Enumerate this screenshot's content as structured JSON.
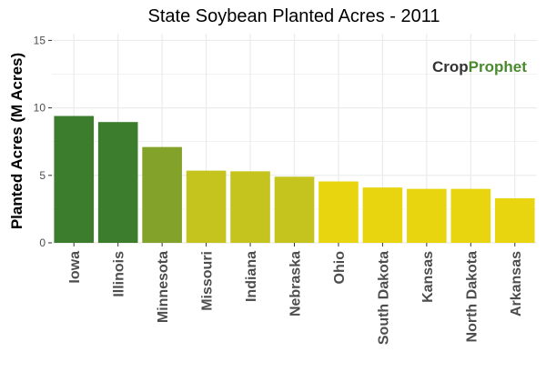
{
  "chart_data": {
    "type": "bar",
    "title": "State Soybean Planted Acres - 2011",
    "xlabel": "",
    "ylabel": "Planted Acres (M Acres)",
    "ylim": [
      0,
      15.5
    ],
    "yticks": [
      0,
      5,
      10,
      15
    ],
    "grid": true,
    "categories": [
      "Iowa",
      "Illinois",
      "Minnesota",
      "Missouri",
      "Indiana",
      "Nebraska",
      "Ohio",
      "South Dakota",
      "Kansas",
      "North Dakota",
      "Arkansas"
    ],
    "values": [
      9.4,
      8.95,
      7.1,
      5.35,
      5.3,
      4.9,
      4.55,
      4.1,
      4.0,
      4.0,
      3.3
    ],
    "colors": [
      "#3b7d2c",
      "#3b7d2c",
      "#83a22a",
      "#c5c41f",
      "#c5c41f",
      "#c5c41f",
      "#e8d50f",
      "#e8d50f",
      "#e8d50f",
      "#e8d50f",
      "#e8d50f"
    ],
    "background": "#ffffff",
    "gridcolor": "#ebebeb"
  },
  "logo": {
    "part1": "Crop",
    "part2": "Prophet",
    "color1": "#333333",
    "color2": "#4a8a2e"
  }
}
